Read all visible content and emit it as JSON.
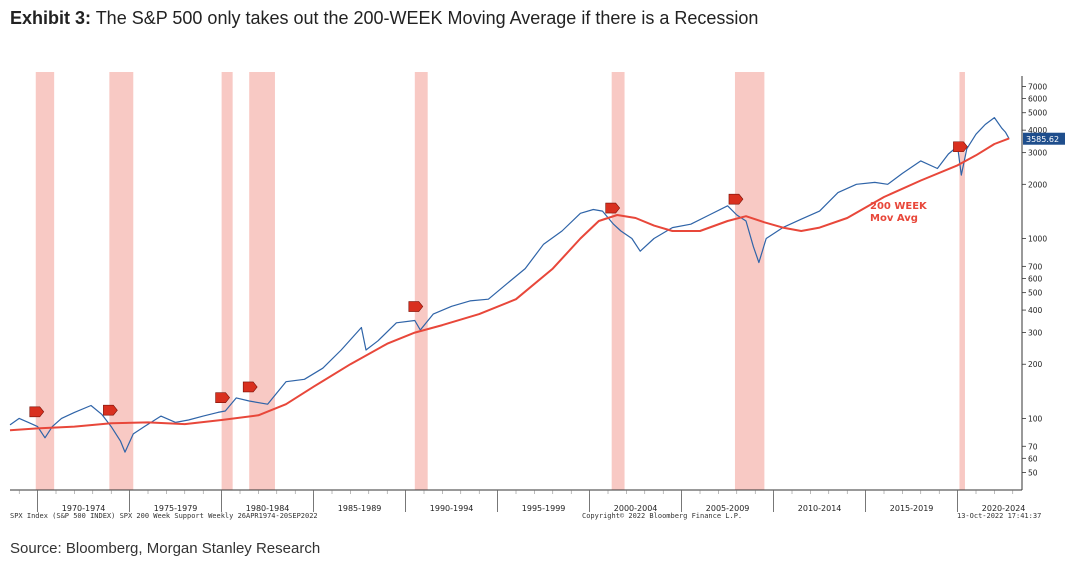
{
  "title_bold": "Exhibit 3:",
  "title_rest": " The S&P 500 only takes out the 200-WEEK Moving Average if there is a Recession",
  "source": "Source: Bloomberg, Morgan Stanley Research",
  "footer_left": "SPX Index (S&P 500 INDEX) SPX 200 Week Support  Weekly 26APR1974-20SEP2022",
  "footer_center": "Copyright© 2022 Bloomberg Finance L.P.",
  "footer_right": "13-Oct-2022 17:41:37",
  "colors": {
    "price": "#2f64a8",
    "ma": "#e8473a",
    "recession": "#f6b7b0",
    "last_badge": "#1f4e8c",
    "marker": "#d9301f"
  },
  "chart_data": {
    "type": "line",
    "yscale": "log",
    "ylim": [
      40,
      8000
    ],
    "xlim": [
      1968.5,
      2023.5
    ],
    "x_tick_labels": [
      "1970-1974",
      "1975-1979",
      "1980-1984",
      "1985-1989",
      "1990-1994",
      "1995-1999",
      "2000-2004",
      "2005-2009",
      "2010-2014",
      "2015-2019",
      "2020-2024"
    ],
    "y_ticks": [
      50,
      60,
      70,
      100,
      200,
      300,
      400,
      500,
      600,
      700,
      1000,
      2000,
      3000,
      4000,
      5000,
      6000,
      7000
    ],
    "last_value_label": "3585.62",
    "annotation": [
      "200 WEEK",
      "Mov Avg"
    ],
    "recessions": [
      [
        1969.9,
        1970.9
      ],
      [
        1973.9,
        1975.2
      ],
      [
        1980.0,
        1980.6
      ],
      [
        1981.5,
        1982.9
      ],
      [
        1990.5,
        1991.2
      ],
      [
        2001.2,
        2001.9
      ],
      [
        2007.9,
        2009.5
      ],
      [
        2020.1,
        2020.4
      ]
    ],
    "series": [
      {
        "values_x": [
          1968.5,
          1969.0,
          1969.5,
          1970.0,
          1970.4,
          1970.8,
          1971.3,
          1972.0,
          1972.9,
          1973.5,
          1974.0,
          1974.5,
          1974.75,
          1975.2,
          1975.8,
          1976.7,
          1977.5,
          1978.2,
          1979.0,
          1979.8,
          1980.2,
          1980.8,
          1981.5,
          1982.5,
          1983.5,
          1984.5,
          1985.5,
          1986.5,
          1987.6,
          1987.85,
          1988.5,
          1989.5,
          1990.5,
          1990.8,
          1991.5,
          1992.5,
          1993.5,
          1994.5,
          1995.5,
          1996.5,
          1997.5,
          1998.5,
          1999.5,
          2000.2,
          2000.7,
          2001.3,
          2001.7,
          2002.3,
          2002.75,
          2003.5,
          2004.5,
          2005.5,
          2006.5,
          2007.5,
          2008.0,
          2008.5,
          2008.9,
          2009.2,
          2009.6,
          2010.5,
          2011.5,
          2012.5,
          2013.5,
          2014.5,
          2015.5,
          2016.2,
          2017.0,
          2018.0,
          2018.9,
          2019.5,
          2020.0,
          2020.2,
          2020.5,
          2021.0,
          2021.5,
          2022.0,
          2022.4,
          2022.6,
          2022.8
        ],
        "values_y": [
          92,
          100,
          95,
          90,
          78,
          90,
          100,
          108,
          118,
          105,
          90,
          75,
          65,
          82,
          90,
          103,
          95,
          98,
          103,
          108,
          110,
          130,
          125,
          120,
          160,
          165,
          190,
          240,
          320,
          240,
          270,
          340,
          350,
          310,
          380,
          420,
          450,
          460,
          560,
          680,
          930,
          1100,
          1380,
          1450,
          1420,
          1200,
          1100,
          1000,
          850,
          1000,
          1150,
          1200,
          1350,
          1520,
          1350,
          1250,
          900,
          735,
          1000,
          1150,
          1280,
          1420,
          1800,
          2000,
          2050,
          2000,
          2300,
          2700,
          2450,
          2950,
          3250,
          2250,
          3150,
          3800,
          4300,
          4700,
          4100,
          3900,
          3585
        ]
      },
      {
        "values_x": [
          1968.5,
          1970.0,
          1972.0,
          1974.0,
          1976.0,
          1978.0,
          1980.0,
          1982.0,
          1983.5,
          1985.0,
          1987.0,
          1989.0,
          1990.5,
          1992.0,
          1994.0,
          1996.0,
          1998.0,
          1999.5,
          2000.5,
          2001.5,
          2002.5,
          2003.5,
          2004.5,
          2006.0,
          2007.5,
          2008.5,
          2009.5,
          2010.5,
          2011.5,
          2012.5,
          2014.0,
          2016.0,
          2018.0,
          2020.0,
          2021.0,
          2022.0,
          2022.8
        ],
        "values_y": [
          86,
          88,
          90,
          94,
          95,
          93,
          98,
          104,
          120,
          150,
          200,
          260,
          300,
          330,
          380,
          460,
          680,
          1000,
          1250,
          1350,
          1300,
          1180,
          1100,
          1100,
          1250,
          1330,
          1230,
          1150,
          1100,
          1150,
          1300,
          1700,
          2100,
          2550,
          2900,
          3350,
          3600
        ]
      }
    ]
  }
}
